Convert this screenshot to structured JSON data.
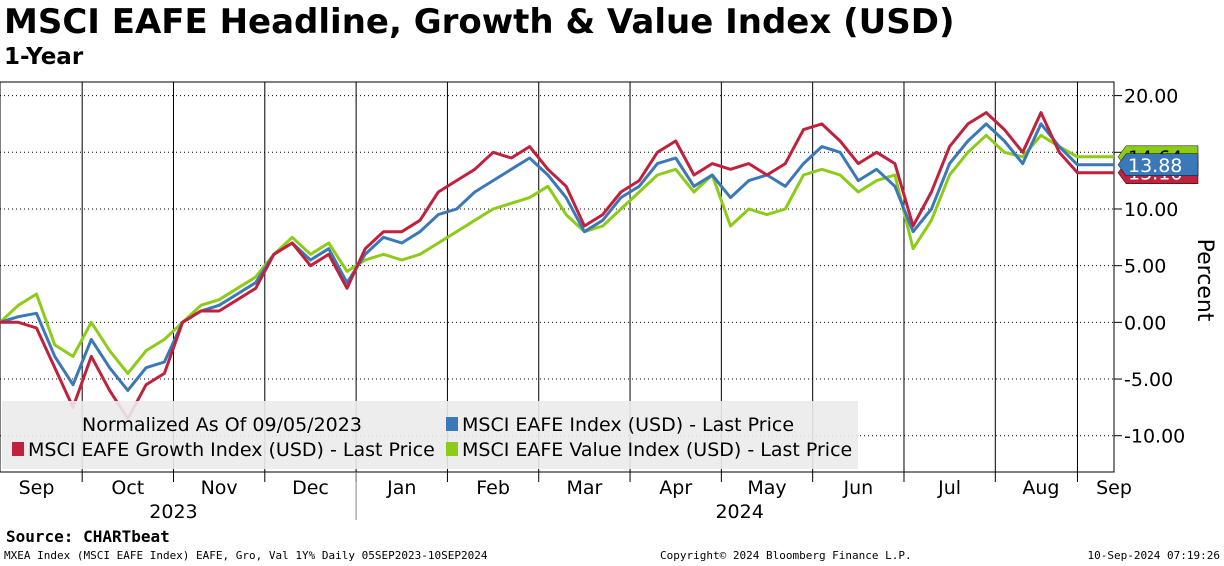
{
  "header": {
    "title": "MSCI EAFE Headline, Growth & Value Index (USD)",
    "subtitle": "1-Year"
  },
  "footer": {
    "source": "Source: CHARTbeat",
    "left": "MXEA Index (MSCI EAFE Index) EAFE, Gro, Val 1Y%  Daily 05SEP2023-10SEP2024",
    "middle": "Copyright© 2024 Bloomberg Finance L.P.",
    "right": "10-Sep-2024 07:19:26"
  },
  "chart_data": {
    "type": "line",
    "title": "MSCI EAFE Headline, Growth & Value Index (USD)",
    "subtitle": "1-Year",
    "ylabel": "Percent",
    "ylim": [
      -13.2,
      21.2
    ],
    "yticks": [
      "20.00",
      "15.00",
      "10.00",
      "5.00",
      "0.00",
      "-5.00",
      "-10.00"
    ],
    "ytick_values": [
      20,
      15,
      10,
      5,
      0,
      -5,
      -10
    ],
    "grid": true,
    "x_range": [
      0,
      12.2
    ],
    "month_labels": [
      "Sep",
      "Oct",
      "Nov",
      "Dec",
      "Jan",
      "Feb",
      "Mar",
      "Apr",
      "May",
      "Jun",
      "Jul",
      "Aug",
      "Sep"
    ],
    "month_positions": [
      0.4,
      1.4,
      2.4,
      3.4,
      4.4,
      5.4,
      6.4,
      7.4,
      8.4,
      9.4,
      10.4,
      11.4,
      12.2
    ],
    "year_labels": [
      "2023",
      "2024"
    ],
    "legend_note": "Normalized As Of 09/05/2023",
    "legend_position": "bottom-left",
    "x": [
      0,
      0.2,
      0.4,
      0.6,
      0.8,
      1.0,
      1.2,
      1.4,
      1.6,
      1.8,
      2.0,
      2.2,
      2.4,
      2.6,
      2.8,
      3.0,
      3.2,
      3.4,
      3.6,
      3.8,
      4.0,
      4.2,
      4.4,
      4.6,
      4.8,
      5.0,
      5.2,
      5.4,
      5.6,
      5.8,
      6.0,
      6.2,
      6.4,
      6.6,
      6.8,
      7.0,
      7.2,
      7.4,
      7.6,
      7.8,
      8.0,
      8.2,
      8.4,
      8.6,
      8.8,
      9.0,
      9.2,
      9.4,
      9.6,
      9.8,
      10.0,
      10.2,
      10.4,
      10.6,
      10.8,
      11.0,
      11.2,
      11.4,
      11.6,
      11.8,
      12.0,
      12.2
    ],
    "series": [
      {
        "name": "MSCI EAFE Index (USD) - Last Price",
        "color": "#3a78b8",
        "last_value": "13.88",
        "values": [
          0.0,
          0.5,
          0.8,
          -3.0,
          -5.5,
          -1.5,
          -4.0,
          -6.0,
          -4.0,
          -3.5,
          0.0,
          1.0,
          1.5,
          2.5,
          3.5,
          6.0,
          7.0,
          5.5,
          6.5,
          3.5,
          6.0,
          7.5,
          7.0,
          8.0,
          9.5,
          10.0,
          11.5,
          12.5,
          13.5,
          14.5,
          13.0,
          11.0,
          8.0,
          9.0,
          11.0,
          12.0,
          14.0,
          14.5,
          12.0,
          13.0,
          11.0,
          12.5,
          13.0,
          12.0,
          14.0,
          15.5,
          15.0,
          12.5,
          13.5,
          12.0,
          8.0,
          10.0,
          14.0,
          16.0,
          17.5,
          16.0,
          14.0,
          17.5,
          15.5,
          13.9,
          13.9,
          13.9
        ]
      },
      {
        "name": "MSCI EAFE Growth Index (USD) - Last Price",
        "color": "#c0213c",
        "last_value": "13.16",
        "values": [
          0.0,
          0.0,
          -0.5,
          -4.0,
          -7.5,
          -3.0,
          -6.0,
          -8.5,
          -5.5,
          -4.5,
          0.0,
          1.0,
          1.0,
          2.0,
          3.0,
          6.0,
          7.0,
          5.0,
          6.0,
          3.0,
          6.5,
          8.0,
          8.0,
          9.0,
          11.5,
          12.5,
          13.5,
          15.0,
          14.5,
          15.5,
          13.5,
          12.0,
          8.5,
          9.5,
          11.5,
          12.5,
          15.0,
          16.0,
          13.0,
          14.0,
          13.5,
          14.0,
          13.0,
          14.0,
          17.0,
          17.5,
          16.0,
          14.0,
          15.0,
          14.0,
          8.5,
          11.5,
          15.5,
          17.5,
          18.5,
          17.0,
          15.0,
          18.5,
          15.0,
          13.2,
          13.2,
          13.2
        ]
      },
      {
        "name": "MSCI EAFE Value Index (USD) - Last Price",
        "color": "#8ccc18",
        "last_value": "14.64",
        "values": [
          0.0,
          1.5,
          2.5,
          -2.0,
          -3.0,
          0.0,
          -2.5,
          -4.5,
          -2.5,
          -1.5,
          0.0,
          1.5,
          2.0,
          3.0,
          4.0,
          6.0,
          7.5,
          6.0,
          7.0,
          4.5,
          5.5,
          6.0,
          5.5,
          6.0,
          7.0,
          8.0,
          9.0,
          10.0,
          10.5,
          11.0,
          12.0,
          9.5,
          8.0,
          8.5,
          10.0,
          11.5,
          13.0,
          13.5,
          11.5,
          13.0,
          8.5,
          10.0,
          9.5,
          10.0,
          13.0,
          13.5,
          13.0,
          11.5,
          12.5,
          13.0,
          6.5,
          9.0,
          13.0,
          15.0,
          16.5,
          15.0,
          14.6,
          16.5,
          15.5,
          14.6,
          14.6,
          14.6
        ]
      }
    ]
  }
}
